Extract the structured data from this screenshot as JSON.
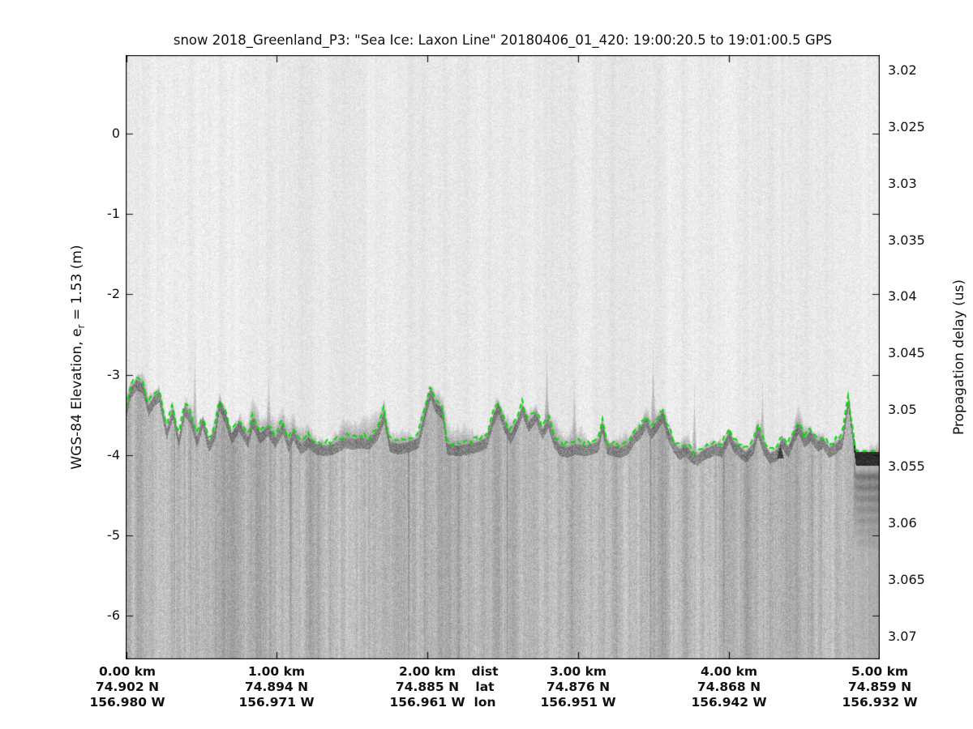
{
  "chart_data": {
    "type": "heatmap",
    "subtype": "radar_echogram",
    "title": "snow 2018_Greenland_P3: \"Sea Ice: Laxon Line\"  20180406_01_420: 19:00:20.5 to 19:01:00.5 GPS",
    "grid": false,
    "x_axis": {
      "legend": {
        "km": "dist",
        "lat": "lat",
        "lon": "lon"
      },
      "range_km": [
        0,
        5
      ],
      "columns": [
        {
          "km": "0.00 km",
          "lat": "74.902 N",
          "lon": "156.980 W"
        },
        {
          "km": "1.00 km",
          "lat": "74.894 N",
          "lon": "156.971 W"
        },
        {
          "km": "2.00 km",
          "lat": "74.885 N",
          "lon": "156.961 W"
        },
        {
          "km": "3.00 km",
          "lat": "74.876 N",
          "lon": "156.951 W"
        },
        {
          "km": "4.00 km",
          "lat": "74.868 N",
          "lon": "156.942 W"
        },
        {
          "km": "5.00 km",
          "lat": "74.859 N",
          "lon": "156.932 W"
        }
      ]
    },
    "left_axis": {
      "label_prefix": "WGS-84 Elevation, e",
      "label_sub": "r",
      "label_suffix": " = 1.53 (m)",
      "units": "m",
      "ticks": [
        "0",
        "-1",
        "-2",
        "-3",
        "-4",
        "-5",
        "-6"
      ],
      "range": [
        0.98,
        -6.54
      ]
    },
    "right_axis": {
      "label": "Propagation delay (us)",
      "units": "us",
      "ticks": [
        "3.02",
        "3.025",
        "3.03",
        "3.035",
        "3.04",
        "3.045",
        "3.05",
        "3.055",
        "3.06",
        "3.065",
        "3.07"
      ],
      "range": [
        3.0186,
        3.072
      ]
    },
    "colors": {
      "surface_pick": "#00dd00",
      "background": "#ffffff",
      "axis": "#111111"
    },
    "surface_line": {
      "name": "surface-pick",
      "style": "dashed",
      "color": "#00dd00",
      "points": [
        [
          0.0,
          -3.43
        ],
        [
          0.03,
          -3.16
        ],
        [
          0.07,
          -3.06
        ],
        [
          0.11,
          -3.1
        ],
        [
          0.15,
          -3.38
        ],
        [
          0.19,
          -3.25
        ],
        [
          0.22,
          -3.21
        ],
        [
          0.27,
          -3.68
        ],
        [
          0.31,
          -3.41
        ],
        [
          0.35,
          -3.78
        ],
        [
          0.39,
          -3.38
        ],
        [
          0.43,
          -3.5
        ],
        [
          0.47,
          -3.78
        ],
        [
          0.51,
          -3.53
        ],
        [
          0.55,
          -3.83
        ],
        [
          0.59,
          -3.68
        ],
        [
          0.62,
          -3.31
        ],
        [
          0.66,
          -3.48
        ],
        [
          0.7,
          -3.73
        ],
        [
          0.75,
          -3.58
        ],
        [
          0.81,
          -3.78
        ],
        [
          0.84,
          -3.53
        ],
        [
          0.89,
          -3.73
        ],
        [
          0.94,
          -3.63
        ],
        [
          0.99,
          -3.78
        ],
        [
          1.04,
          -3.6
        ],
        [
          1.08,
          -3.83
        ],
        [
          1.11,
          -3.68
        ],
        [
          1.16,
          -3.86
        ],
        [
          1.21,
          -3.78
        ],
        [
          1.26,
          -3.86
        ],
        [
          1.32,
          -3.88
        ],
        [
          1.38,
          -3.86
        ],
        [
          1.45,
          -3.78
        ],
        [
          1.51,
          -3.8
        ],
        [
          1.56,
          -3.78
        ],
        [
          1.61,
          -3.8
        ],
        [
          1.67,
          -3.68
        ],
        [
          1.71,
          -3.46
        ],
        [
          1.75,
          -3.83
        ],
        [
          1.81,
          -3.86
        ],
        [
          1.88,
          -3.83
        ],
        [
          1.94,
          -3.78
        ],
        [
          1.99,
          -3.38
        ],
        [
          2.02,
          -3.16
        ],
        [
          2.05,
          -3.33
        ],
        [
          2.1,
          -3.43
        ],
        [
          2.13,
          -3.86
        ],
        [
          2.2,
          -3.88
        ],
        [
          2.27,
          -3.86
        ],
        [
          2.34,
          -3.83
        ],
        [
          2.39,
          -3.78
        ],
        [
          2.44,
          -3.48
        ],
        [
          2.47,
          -3.35
        ],
        [
          2.51,
          -3.58
        ],
        [
          2.55,
          -3.73
        ],
        [
          2.6,
          -3.53
        ],
        [
          2.63,
          -3.38
        ],
        [
          2.67,
          -3.58
        ],
        [
          2.72,
          -3.46
        ],
        [
          2.76,
          -3.68
        ],
        [
          2.8,
          -3.53
        ],
        [
          2.84,
          -3.78
        ],
        [
          2.88,
          -3.88
        ],
        [
          2.93,
          -3.9
        ],
        [
          2.98,
          -3.86
        ],
        [
          3.04,
          -3.88
        ],
        [
          3.09,
          -3.86
        ],
        [
          3.13,
          -3.83
        ],
        [
          3.16,
          -3.58
        ],
        [
          3.19,
          -3.86
        ],
        [
          3.23,
          -3.88
        ],
        [
          3.28,
          -3.9
        ],
        [
          3.33,
          -3.86
        ],
        [
          3.37,
          -3.73
        ],
        [
          3.41,
          -3.66
        ],
        [
          3.45,
          -3.53
        ],
        [
          3.48,
          -3.68
        ],
        [
          3.52,
          -3.58
        ],
        [
          3.56,
          -3.45
        ],
        [
          3.59,
          -3.66
        ],
        [
          3.63,
          -3.83
        ],
        [
          3.67,
          -3.93
        ],
        [
          3.71,
          -3.88
        ],
        [
          3.75,
          -3.96
        ],
        [
          3.79,
          -4.0
        ],
        [
          3.83,
          -3.93
        ],
        [
          3.87,
          -3.9
        ],
        [
          3.91,
          -3.86
        ],
        [
          3.95,
          -3.9
        ],
        [
          4.0,
          -3.7
        ],
        [
          4.03,
          -3.83
        ],
        [
          4.07,
          -3.9
        ],
        [
          4.11,
          -3.96
        ],
        [
          4.16,
          -3.86
        ],
        [
          4.19,
          -3.63
        ],
        [
          4.23,
          -3.86
        ],
        [
          4.27,
          -3.98
        ],
        [
          4.32,
          -3.93
        ],
        [
          4.35,
          -3.78
        ],
        [
          4.39,
          -3.9
        ],
        [
          4.44,
          -3.68
        ],
        [
          4.46,
          -3.6
        ],
        [
          4.5,
          -3.78
        ],
        [
          4.54,
          -3.7
        ],
        [
          4.59,
          -3.83
        ],
        [
          4.62,
          -3.78
        ],
        [
          4.66,
          -3.9
        ],
        [
          4.7,
          -3.86
        ],
        [
          4.75,
          -3.78
        ],
        [
          4.79,
          -3.28
        ],
        [
          4.81,
          -3.58
        ],
        [
          4.84,
          -3.98
        ],
        [
          4.89,
          -3.98
        ],
        [
          4.95,
          -3.98
        ],
        [
          5.0,
          -3.98
        ]
      ]
    },
    "features": {
      "lead_echo": {
        "start_km": 4.83,
        "end_km": 5.0,
        "elev_m": -3.98
      },
      "dark_spot": {
        "km": 4.34,
        "elev_m": -3.92
      }
    }
  }
}
